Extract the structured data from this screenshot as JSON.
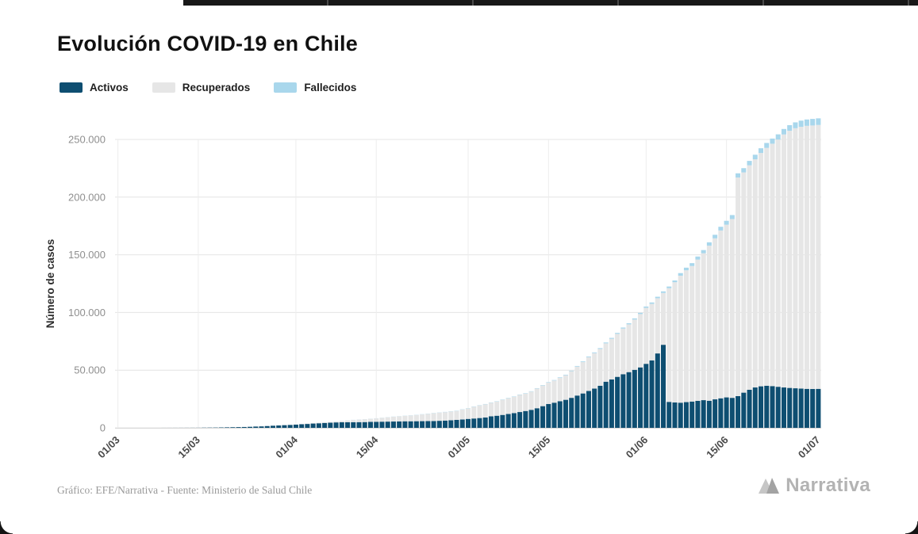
{
  "header": {
    "title": "Evolución COVID-19 en Chile"
  },
  "legend": {
    "items": [
      {
        "label": "Activos",
        "color": "#0e4e71"
      },
      {
        "label": "Recuperados",
        "color": "#e6e6e6"
      },
      {
        "label": "Fallecidos",
        "color": "#a9d7ec"
      }
    ]
  },
  "footer": {
    "credit": "Gráfico: EFE/Narrativa - Fuente: Ministerio de Salud Chile",
    "brand": "Narrativa"
  },
  "chart_data": {
    "type": "bar",
    "stacked": true,
    "title": "Evolución COVID-19 en Chile",
    "xlabel": "",
    "ylabel": "Número de casos",
    "ylim": [
      0,
      250000
    ],
    "grid": true,
    "legend_position": "top-left",
    "n_bars": 123,
    "date_start": "01/03",
    "date_end": "01/07",
    "y_ticks": [
      {
        "value": 0,
        "label": "0"
      },
      {
        "value": 50000,
        "label": "50.000"
      },
      {
        "value": 100000,
        "label": "100.000"
      },
      {
        "value": 150000,
        "label": "150.000"
      },
      {
        "value": 200000,
        "label": "200.000"
      },
      {
        "value": 250000,
        "label": "250.000"
      }
    ],
    "x_ticks": [
      {
        "day_index": 0,
        "label": "01/03"
      },
      {
        "day_index": 14,
        "label": "15/03"
      },
      {
        "day_index": 31,
        "label": "01/04"
      },
      {
        "day_index": 45,
        "label": "15/04"
      },
      {
        "day_index": 61,
        "label": "01/05"
      },
      {
        "day_index": 75,
        "label": "15/05"
      },
      {
        "day_index": 92,
        "label": "01/06"
      },
      {
        "day_index": 106,
        "label": "15/06"
      },
      {
        "day_index": 122,
        "label": "01/07"
      }
    ],
    "series": [
      {
        "name": "Activos",
        "color": "#0e4e71",
        "values": [
          1,
          1,
          3,
          4,
          6,
          8,
          10,
          13,
          17,
          23,
          33,
          43,
          55,
          61,
          75,
          155,
          200,
          236,
          339,
          428,
          528,
          620,
          728,
          897,
          1108,
          1259,
          1549,
          1836,
          2051,
          2341,
          2570,
          2781,
          3100,
          3372,
          3723,
          3970,
          4233,
          4446,
          4700,
          4800,
          4865,
          4900,
          4950,
          5000,
          5150,
          5242,
          5350,
          5400,
          5470,
          5600,
          5692,
          5700,
          5750,
          5800,
          5870,
          5931,
          6100,
          6300,
          6600,
          6900,
          7216,
          7756,
          8100,
          8500,
          9000,
          10000,
          10500,
          11200,
          12000,
          12800,
          13700,
          14600,
          15600,
          17000,
          18800,
          20700,
          21800,
          23100,
          24300,
          26000,
          28000,
          29800,
          32000,
          34000,
          36500,
          40000,
          42000,
          44200,
          46500,
          48300,
          50300,
          52400,
          55500,
          58500,
          64500,
          72000,
          22500,
          22000,
          21800,
          22300,
          22800,
          23400,
          24000,
          23500,
          24700,
          25600,
          26400,
          26000,
          27500,
          30500,
          33000,
          35000,
          36000,
          36500,
          36200,
          35600,
          35000,
          34600,
          34300,
          34000,
          33800,
          33700,
          33800
        ]
      },
      {
        "name": "Recuperados",
        "color": "#e6e6e6",
        "values": [
          0,
          0,
          0,
          0,
          0,
          0,
          0,
          0,
          0,
          0,
          0,
          0,
          0,
          0,
          0,
          1,
          1,
          2,
          3,
          6,
          8,
          11,
          16,
          23,
          31,
          43,
          56,
          67,
          81,
          100,
          156,
          234,
          286,
          343,
          413,
          474,
          548,
          633,
          805,
          1129,
          1571,
          1954,
          2183,
          2443,
          2675,
          2937,
          3359,
          3747,
          4147,
          4372,
          4676,
          4985,
          5386,
          5844,
          6262,
          6746,
          7042,
          7315,
          7558,
          7769,
          8580,
          9018,
          10095,
          10916,
          11383,
          11741,
          12267,
          13096,
          13678,
          14115,
          14854,
          15140,
          15786,
          17035,
          17872,
          18448,
          19207,
          20231,
          21281,
          23070,
          25073,
          27192,
          29227,
          30720,
          31884,
          33236,
          35155,
          37248,
          39553,
          41394,
          43561,
          46234,
          48546,
          48998,
          47853,
          44936,
          98551,
          104204,
          110086,
          114263,
          117484,
          122448,
          127322,
          134376,
          139554,
          145463,
          149674,
          154995,
          189513,
          190922,
          194578,
          197807,
          202280,
          206168,
          210088,
          214314,
          219333,
          222897,
          225432,
          226953,
          227991,
          228412,
          228747
        ]
      },
      {
        "name": "Fallecidos",
        "color": "#a9d7ec",
        "values": [
          0,
          0,
          0,
          0,
          0,
          0,
          0,
          0,
          0,
          0,
          0,
          0,
          0,
          0,
          0,
          0,
          0,
          0,
          0,
          0,
          1,
          1,
          2,
          2,
          3,
          4,
          5,
          6,
          7,
          8,
          12,
          16,
          18,
          22,
          25,
          27,
          34,
          37,
          41,
          43,
          65,
          73,
          80,
          82,
          92,
          94,
          98,
          105,
          113,
          116,
          139,
          147,
          160,
          168,
          174,
          181,
          189,
          198,
          207,
          216,
          227,
          234,
          240,
          247,
          260,
          275,
          281,
          285,
          294,
          304,
          312,
          323,
          335,
          346,
          368,
          394,
          421,
          450,
          478,
          509,
          544,
          589,
          630,
          673,
          718,
          761,
          806,
          841,
          890,
          944,
          997,
          1054,
          1113,
          1188,
          1275,
          1356,
          1448,
          1541,
          2264,
          2283,
          2475,
          2648,
          2770,
          2970,
          3101,
          3230,
          3362,
          3454,
          3615,
          3681,
          3815,
          3941,
          4075,
          4295,
          4479,
          4502,
          4731,
          4903,
          5068,
          5347,
          5509,
          5688,
          5753
        ]
      }
    ]
  }
}
